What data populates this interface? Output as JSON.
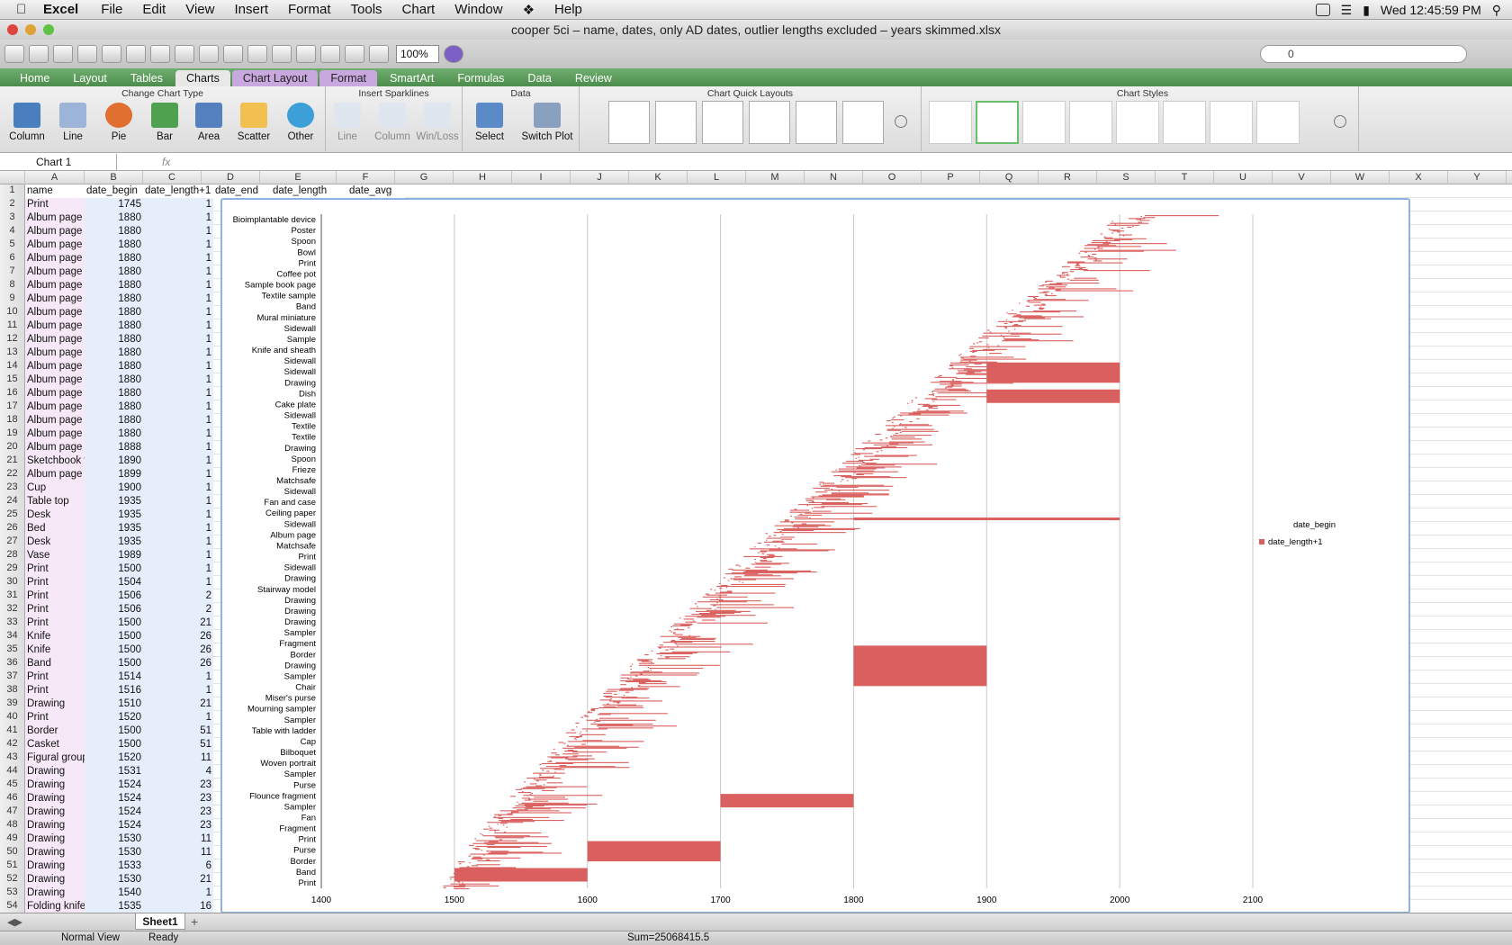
{
  "menubar": {
    "app": "Excel",
    "items": [
      "File",
      "Edit",
      "View",
      "Insert",
      "Format",
      "Tools",
      "Chart",
      "Window",
      "Help"
    ],
    "clock": "Wed 12:45:59 PM"
  },
  "window": {
    "title": "cooper 5ci – name, dates, only AD dates, outlier lengths excluded – years skimmed.xlsx"
  },
  "toolbar": {
    "zoom": "100%",
    "search_value": "0"
  },
  "ribbon": {
    "tabs": [
      "Home",
      "Layout",
      "Tables",
      "Charts",
      "Chart Layout",
      "Format",
      "SmartArt",
      "Formulas",
      "Data",
      "Review"
    ],
    "groups": {
      "chart_type": "Change Chart Type",
      "sparklines": "Insert Sparklines",
      "data": "Data",
      "quick_layouts": "Chart Quick Layouts",
      "styles": "Chart Styles"
    },
    "chart_type_buttons": [
      "Column",
      "Line",
      "Pie",
      "Bar",
      "Area",
      "Scatter",
      "Other"
    ],
    "sparkline_buttons": [
      "Line",
      "Column",
      "Win/Loss"
    ],
    "data_buttons": [
      "Select",
      "Switch Plot"
    ],
    "accent": "#4c8c4c"
  },
  "formula_bar": {
    "name_box": "Chart 1",
    "fx": "fx"
  },
  "columns": [
    "A",
    "B",
    "C",
    "D",
    "E",
    "F",
    "G",
    "H",
    "I",
    "J",
    "K",
    "L",
    "M",
    "N",
    "O",
    "P",
    "Q",
    "R",
    "S",
    "T",
    "U",
    "V",
    "W",
    "X",
    "Y"
  ],
  "headers": {
    "A": "name",
    "B": "date_begin",
    "C": "date_length+1",
    "D": "date_end",
    "E": "date_length",
    "F": "date_avg"
  },
  "rows": [
    {
      "n": "2",
      "name": "Print",
      "begin": "1745",
      "len": "1"
    },
    {
      "n": "3",
      "name": "Album page",
      "begin": "1880",
      "len": "1"
    },
    {
      "n": "4",
      "name": "Album page",
      "begin": "1880",
      "len": "1"
    },
    {
      "n": "5",
      "name": "Album page",
      "begin": "1880",
      "len": "1"
    },
    {
      "n": "6",
      "name": "Album page",
      "begin": "1880",
      "len": "1"
    },
    {
      "n": "7",
      "name": "Album page",
      "begin": "1880",
      "len": "1"
    },
    {
      "n": "8",
      "name": "Album page",
      "begin": "1880",
      "len": "1"
    },
    {
      "n": "9",
      "name": "Album page",
      "begin": "1880",
      "len": "1"
    },
    {
      "n": "10",
      "name": "Album page",
      "begin": "1880",
      "len": "1"
    },
    {
      "n": "11",
      "name": "Album page",
      "begin": "1880",
      "len": "1"
    },
    {
      "n": "12",
      "name": "Album page",
      "begin": "1880",
      "len": "1"
    },
    {
      "n": "13",
      "name": "Album page",
      "begin": "1880",
      "len": "1"
    },
    {
      "n": "14",
      "name": "Album page",
      "begin": "1880",
      "len": "1"
    },
    {
      "n": "15",
      "name": "Album page",
      "begin": "1880",
      "len": "1"
    },
    {
      "n": "16",
      "name": "Album page",
      "begin": "1880",
      "len": "1"
    },
    {
      "n": "17",
      "name": "Album page",
      "begin": "1880",
      "len": "1"
    },
    {
      "n": "18",
      "name": "Album page",
      "begin": "1880",
      "len": "1"
    },
    {
      "n": "19",
      "name": "Album page",
      "begin": "1880",
      "len": "1"
    },
    {
      "n": "20",
      "name": "Album page",
      "begin": "1888",
      "len": "1"
    },
    {
      "n": "21",
      "name": "Sketchbook f",
      "begin": "1890",
      "len": "1"
    },
    {
      "n": "22",
      "name": "Album page",
      "begin": "1899",
      "len": "1"
    },
    {
      "n": "23",
      "name": "Cup",
      "begin": "1900",
      "len": "1"
    },
    {
      "n": "24",
      "name": "Table top",
      "begin": "1935",
      "len": "1"
    },
    {
      "n": "25",
      "name": "Desk",
      "begin": "1935",
      "len": "1"
    },
    {
      "n": "26",
      "name": "Bed",
      "begin": "1935",
      "len": "1"
    },
    {
      "n": "27",
      "name": "Desk",
      "begin": "1935",
      "len": "1"
    },
    {
      "n": "28",
      "name": "Vase",
      "begin": "1989",
      "len": "1"
    },
    {
      "n": "29",
      "name": "Print",
      "begin": "1500",
      "len": "1"
    },
    {
      "n": "30",
      "name": "Print",
      "begin": "1504",
      "len": "1"
    },
    {
      "n": "31",
      "name": "Print",
      "begin": "1506",
      "len": "2"
    },
    {
      "n": "32",
      "name": "Print",
      "begin": "1506",
      "len": "2"
    },
    {
      "n": "33",
      "name": "Print",
      "begin": "1500",
      "len": "21"
    },
    {
      "n": "34",
      "name": "Knife",
      "begin": "1500",
      "len": "26"
    },
    {
      "n": "35",
      "name": "Knife",
      "begin": "1500",
      "len": "26"
    },
    {
      "n": "36",
      "name": "Band",
      "begin": "1500",
      "len": "26"
    },
    {
      "n": "37",
      "name": "Print",
      "begin": "1514",
      "len": "1"
    },
    {
      "n": "38",
      "name": "Print",
      "begin": "1516",
      "len": "1"
    },
    {
      "n": "39",
      "name": "Drawing",
      "begin": "1510",
      "len": "21"
    },
    {
      "n": "40",
      "name": "Print",
      "begin": "1520",
      "len": "1"
    },
    {
      "n": "41",
      "name": "Border",
      "begin": "1500",
      "len": "51"
    },
    {
      "n": "42",
      "name": "Casket",
      "begin": "1500",
      "len": "51"
    },
    {
      "n": "43",
      "name": "Figural group",
      "begin": "1520",
      "len": "11"
    },
    {
      "n": "44",
      "name": "Drawing",
      "begin": "1531",
      "len": "4"
    },
    {
      "n": "45",
      "name": "Drawing",
      "begin": "1524",
      "len": "23"
    },
    {
      "n": "46",
      "name": "Drawing",
      "begin": "1524",
      "len": "23"
    },
    {
      "n": "47",
      "name": "Drawing",
      "begin": "1524",
      "len": "23"
    },
    {
      "n": "48",
      "name": "Drawing",
      "begin": "1524",
      "len": "23"
    },
    {
      "n": "49",
      "name": "Drawing",
      "begin": "1530",
      "len": "11"
    },
    {
      "n": "50",
      "name": "Drawing",
      "begin": "1530",
      "len": "11"
    },
    {
      "n": "51",
      "name": "Drawing",
      "begin": "1533",
      "len": "6"
    },
    {
      "n": "52",
      "name": "Drawing",
      "begin": "1530",
      "len": "21"
    },
    {
      "n": "53",
      "name": "Drawing",
      "begin": "1540",
      "len": "1"
    },
    {
      "n": "54",
      "name": "Folding knife",
      "begin": "1535",
      "len": "16"
    }
  ],
  "chart_data": {
    "type": "bar",
    "orientation": "horizontal-stacked",
    "xlim": [
      1400,
      2100
    ],
    "x_ticks": [
      "1400",
      "1500",
      "1600",
      "1700",
      "1800",
      "1900",
      "2000",
      "2100"
    ],
    "categories": [
      "Bioimplantable device",
      "Poster",
      "Spoon",
      "Bowl",
      "Print",
      "Coffee pot",
      "Sample book page",
      "Textile sample",
      "Band",
      "Mural miniature",
      "Sidewall",
      "Sample",
      "Knife and sheath",
      "Sidewall",
      "Sidewall",
      "Drawing",
      "Dish",
      "Cake plate",
      "Sidewall",
      "Textile",
      "Textile",
      "Drawing",
      "Spoon",
      "Frieze",
      "Matchsafe",
      "Sidewall",
      "Fan and case",
      "Ceiling paper",
      "Sidewall",
      "Album page",
      "Matchsafe",
      "Print",
      "Sidewall",
      "Drawing",
      "Stairway model",
      "Drawing",
      "Drawing",
      "Drawing",
      "Sampler",
      "Fragment",
      "Border",
      "Drawing",
      "Sampler",
      "Chair",
      "Miser's purse",
      "Mourning sampler",
      "Sampler",
      "Table with ladder",
      "Cap",
      "Bilboquet",
      "Woven portrait",
      "Sampler",
      "Purse",
      "Flounce fragment",
      "Sampler",
      "Fan",
      "Fragment",
      "Print",
      "Purse",
      "Border",
      "Band",
      "Print"
    ],
    "series": [
      {
        "name": "date_begin",
        "visible": false
      },
      {
        "name": "date_length+1",
        "color": "#d9605e"
      }
    ],
    "grid": "vertical",
    "legend": "right",
    "legend_entries": [
      "date_begin",
      "date_length+1"
    ],
    "trend_segments": [
      {
        "y_from": 1.0,
        "y_to": 0.0,
        "x_begin_from": 1500,
        "x_begin_to": 2010
      }
    ]
  },
  "sheet_tab": "Sheet1",
  "status": {
    "view": "Normal View",
    "ready": "Ready",
    "sum": "Sum=25068415.5"
  }
}
